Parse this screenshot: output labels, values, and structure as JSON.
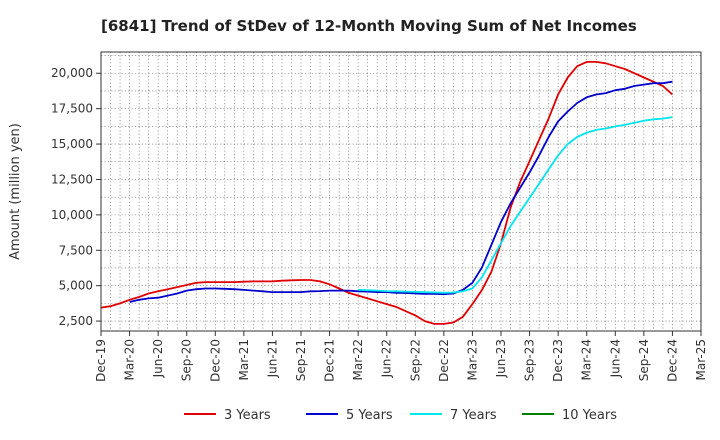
{
  "chart_data": {
    "type": "line",
    "title": "[6841]  Trend of StDev of 12-Month Moving Sum of Net Incomes",
    "ylabel": "Amount (million yen)",
    "xlabel": "",
    "ylim": [
      1800,
      21500
    ],
    "yticks": [
      2500,
      5000,
      7500,
      10000,
      12500,
      15000,
      17500,
      20000
    ],
    "ytick_labels": [
      "2,500",
      "5,000",
      "7,500",
      "10,000",
      "12,500",
      "15,000",
      "17,500",
      "20,000"
    ],
    "x_categories": [
      "Dec-19",
      "Mar-20",
      "Jun-20",
      "Sep-20",
      "Dec-20",
      "Mar-21",
      "Jun-21",
      "Sep-21",
      "Dec-21",
      "Mar-22",
      "Jun-22",
      "Sep-22",
      "Dec-22",
      "Mar-23",
      "Jun-23",
      "Sep-23",
      "Dec-23",
      "Mar-24",
      "Jun-24",
      "Sep-24",
      "Dec-24",
      "Mar-25"
    ],
    "grid": true,
    "legend_position": "bottom",
    "series": [
      {
        "name": "3 Years",
        "color": "#e00000",
        "x": [
          "Dec-19",
          "Jan-20",
          "Feb-20",
          "Mar-20",
          "Apr-20",
          "May-20",
          "Jun-20",
          "Jul-20",
          "Aug-20",
          "Sep-20",
          "Oct-20",
          "Nov-20",
          "Dec-20",
          "Jan-21",
          "Feb-21",
          "Mar-21",
          "Apr-21",
          "May-21",
          "Jun-21",
          "Jul-21",
          "Aug-21",
          "Sep-21",
          "Oct-21",
          "Nov-21",
          "Dec-21",
          "Jan-22",
          "Feb-22",
          "Mar-22",
          "Apr-22",
          "May-22",
          "Jun-22",
          "Jul-22",
          "Aug-22",
          "Sep-22",
          "Oct-22",
          "Nov-22",
          "Dec-22",
          "Jan-23",
          "Feb-23",
          "Mar-23",
          "Apr-23",
          "May-23",
          "Jun-23",
          "Jul-23",
          "Aug-23",
          "Sep-23",
          "Oct-23",
          "Nov-23",
          "Dec-23",
          "Jan-24",
          "Feb-24",
          "Mar-24",
          "Apr-24",
          "May-24",
          "Jun-24",
          "Jul-24",
          "Aug-24",
          "Sep-24",
          "Oct-24",
          "Nov-24",
          "Dec-24"
        ],
        "values": [
          3450,
          3550,
          3750,
          4000,
          4200,
          4450,
          4600,
          4750,
          4900,
          5050,
          5200,
          5250,
          5250,
          5250,
          5250,
          5280,
          5300,
          5300,
          5300,
          5350,
          5380,
          5400,
          5400,
          5300,
          5100,
          4800,
          4500,
          4300,
          4100,
          3900,
          3700,
          3500,
          3200,
          2900,
          2500,
          2300,
          2300,
          2400,
          2800,
          3700,
          4700,
          6000,
          8000,
          10500,
          12300,
          13800,
          15300,
          16800,
          18500,
          19700,
          20500,
          20800,
          20800,
          20700,
          20500,
          20300,
          20000,
          19700,
          19400,
          19100,
          18500
        ]
      },
      {
        "name": "5 Years",
        "color": "#0000cc",
        "x": [
          "Mar-20",
          "Apr-20",
          "May-20",
          "Jun-20",
          "Jul-20",
          "Aug-20",
          "Sep-20",
          "Oct-20",
          "Nov-20",
          "Dec-20",
          "Jan-21",
          "Feb-21",
          "Mar-21",
          "Apr-21",
          "May-21",
          "Jun-21",
          "Jul-21",
          "Aug-21",
          "Sep-21",
          "Oct-21",
          "Nov-21",
          "Dec-21",
          "Jan-22",
          "Feb-22",
          "Mar-22",
          "Apr-22",
          "May-22",
          "Jun-22",
          "Jul-22",
          "Aug-22",
          "Sep-22",
          "Oct-22",
          "Nov-22",
          "Dec-22",
          "Jan-23",
          "Feb-23",
          "Mar-23",
          "Apr-23",
          "May-23",
          "Jun-23",
          "Jul-23",
          "Aug-23",
          "Sep-23",
          "Oct-23",
          "Nov-23",
          "Dec-23",
          "Jan-24",
          "Feb-24",
          "Mar-24",
          "Apr-24",
          "May-24",
          "Jun-24",
          "Jul-24",
          "Aug-24",
          "Sep-24",
          "Oct-24",
          "Nov-24",
          "Dec-24"
        ],
        "values": [
          3850,
          4000,
          4100,
          4150,
          4300,
          4450,
          4650,
          4750,
          4800,
          4800,
          4780,
          4750,
          4700,
          4650,
          4600,
          4550,
          4550,
          4550,
          4550,
          4600,
          4620,
          4650,
          4650,
          4650,
          4600,
          4580,
          4550,
          4550,
          4500,
          4480,
          4450,
          4430,
          4430,
          4400,
          4450,
          4700,
          5200,
          6300,
          7900,
          9500,
          10800,
          11900,
          13000,
          14200,
          15500,
          16600,
          17300,
          17900,
          18300,
          18500,
          18600,
          18800,
          18900,
          19100,
          19200,
          19300,
          19300,
          19400
        ]
      },
      {
        "name": "7 Years",
        "color": "#00e5ee",
        "x": [
          "Mar-22",
          "Apr-22",
          "May-22",
          "Jun-22",
          "Jul-22",
          "Aug-22",
          "Sep-22",
          "Oct-22",
          "Nov-22",
          "Dec-22",
          "Jan-23",
          "Feb-23",
          "Mar-23",
          "Apr-23",
          "May-23",
          "Jun-23",
          "Jul-23",
          "Aug-23",
          "Sep-23",
          "Oct-23",
          "Nov-23",
          "Dec-23",
          "Jan-24",
          "Feb-24",
          "Mar-24",
          "Apr-24",
          "May-24",
          "Jun-24",
          "Jul-24",
          "Aug-24",
          "Sep-24",
          "Oct-24",
          "Nov-24",
          "Dec-24"
        ],
        "values": [
          4700,
          4680,
          4650,
          4620,
          4600,
          4580,
          4560,
          4540,
          4520,
          4500,
          4520,
          4600,
          4800,
          5600,
          6800,
          8000,
          9200,
          10200,
          11200,
          12200,
          13200,
          14200,
          15000,
          15500,
          15800,
          16000,
          16100,
          16250,
          16350,
          16500,
          16650,
          16750,
          16800,
          16900
        ]
      },
      {
        "name": "10 Years",
        "color": "#008000",
        "x": [],
        "values": []
      }
    ]
  }
}
